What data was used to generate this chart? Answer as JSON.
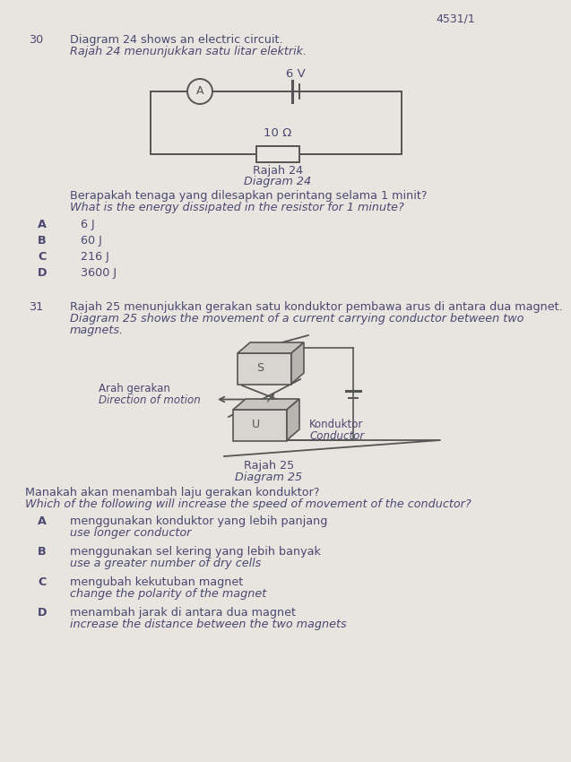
{
  "bg_color": "#e8e5e1",
  "text_color": "#4a4870",
  "line_color": "#555555",
  "header_number": "4531/1",
  "q30_number": "30",
  "q30_line1": "Diagram 24 shows an electric circuit.",
  "q30_line2": "Rajah 24 menunjukkan satu litar elektrik.",
  "circuit_voltage": "6 V",
  "circuit_resistance": "10 Ω",
  "circuit_label": "Rajah 24",
  "circuit_label2": "Diagram 24",
  "q30_q_malay": "Berapakah tenaga yang dilesapkan perintang selama 1 minit?",
  "q30_q_eng": "What is the energy dissipated in the resistor for 1 minute?",
  "q30_A": "6 J",
  "q30_B": "60 J",
  "q30_C": "216 J",
  "q30_D": "3600 J",
  "q31_number": "31",
  "q31_line1": "Rajah 25 menunjukkan gerakan satu konduktor pembawa arus di antara dua magnet.",
  "q31_line2": "Diagram 25 shows the movement of a current carrying conductor between two",
  "q31_line3": "magnets.",
  "diagram25_label1": "Arah gerakan",
  "diagram25_label2": "Direction of motion",
  "diagram25_S": "S",
  "diagram25_U": "U",
  "diagram25_conductor1": "Konduktor",
  "diagram25_conductor2": "Conductor",
  "diagram25_rajah": "Rajah 25",
  "diagram25_diagram": "Diagram 25",
  "q31_q_malay": "Manakah akan menambah laju gerakan konduktor?",
  "q31_q_eng": "Which of the following will increase the speed of movement of the conductor?",
  "q31_A1": "menggunakan konduktor yang lebih panjang",
  "q31_A2": "use longer conductor",
  "q31_B1": "menggunakan sel kering yang lebih banyak",
  "q31_B2": "use a greater number of dry cells",
  "q31_C1": "mengubah kekutuban magnet",
  "q31_C2": "change the polarity of the magnet",
  "q31_D1": "menambah jarak di antara dua magnet",
  "q31_D2": "increase the distance between the two magnets"
}
